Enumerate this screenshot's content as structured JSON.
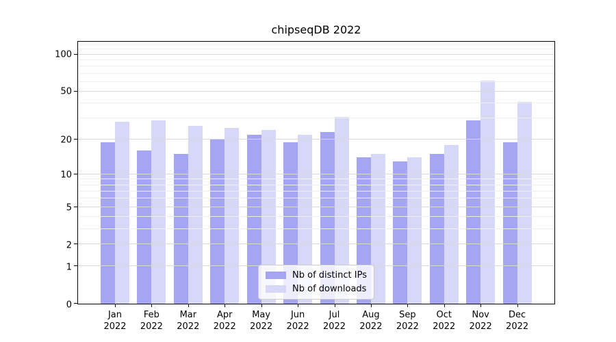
{
  "chart_data": {
    "type": "bar",
    "title": "chipseqDB 2022",
    "year": "2022",
    "categories": [
      "Jan",
      "Feb",
      "Mar",
      "Apr",
      "May",
      "Jun",
      "Jul",
      "Aug",
      "Sep",
      "Oct",
      "Nov",
      "Dec"
    ],
    "series": [
      {
        "key": "distinct-ips",
        "name": "Nb of distinct IPs",
        "color": "#a5a5f2",
        "values": [
          19,
          16,
          15,
          20,
          22,
          19,
          23,
          14,
          13,
          15,
          29,
          19
        ]
      },
      {
        "key": "downloads",
        "name": "Nb of downloads",
        "color": "#d7d7f8",
        "values": [
          28,
          29,
          26,
          25,
          24,
          22,
          31,
          15,
          14,
          18,
          61,
          41
        ]
      }
    ],
    "xlabel": "",
    "ylabel": "",
    "yscale": "log1p",
    "ylim": [
      0,
      127
    ],
    "ylog_max": 2.108,
    "yticks_major": [
      100,
      50,
      20,
      10,
      5,
      2,
      1,
      0
    ],
    "ygrid_minor": [
      3,
      4,
      6,
      7,
      8,
      9,
      30,
      40,
      60,
      70,
      80,
      90,
      110,
      120
    ],
    "grid": true,
    "legend_position": "lower center",
    "colors": {
      "major_grid": "#d9d9d9",
      "minor_grid": "#efefef",
      "spine": "#000000",
      "legend_border": "#cccccc",
      "legend_bg": "#ffffff"
    }
  }
}
